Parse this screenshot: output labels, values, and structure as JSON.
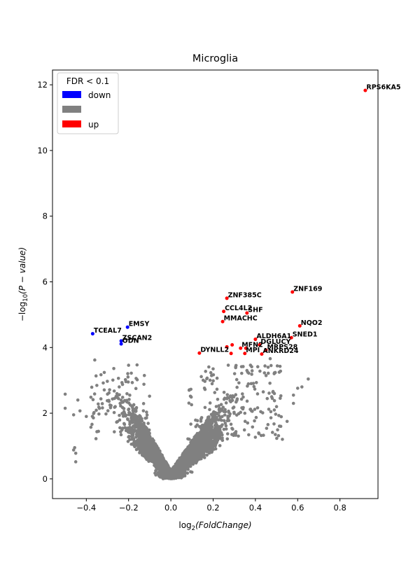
{
  "chart_data": {
    "type": "scatter",
    "title": "Microglia",
    "xlabel_main": "log",
    "xlabel_sub": "2",
    "xlabel_paren": "(FoldChange)",
    "ylabel_main": "−log",
    "ylabel_sub": "10",
    "ylabel_paren": "(P − value)",
    "xlim": [
      -0.56,
      0.98
    ],
    "ylim": [
      -0.6,
      12.45
    ],
    "xticks": [
      -0.4,
      -0.2,
      0.0,
      0.2,
      0.4,
      0.6,
      0.8
    ],
    "xtick_labels": [
      "−0.4",
      "−0.2",
      "0.0",
      "0.2",
      "0.4",
      "0.6",
      "0.8"
    ],
    "yticks": [
      0,
      2,
      4,
      6,
      8,
      10,
      12
    ],
    "ytick_labels": [
      "0",
      "2",
      "4",
      "6",
      "8",
      "10",
      "12"
    ],
    "grid": false,
    "legend": {
      "title": "FDR < 0.1",
      "position": "top-left",
      "entries": [
        {
          "label": "down",
          "color": "#0000ff"
        },
        {
          "label": "",
          "color": "#808080"
        },
        {
          "label": "up",
          "color": "#ff0000"
        }
      ]
    },
    "colors": {
      "down": "#0000ff",
      "ns": "#808080",
      "up": "#ff0000"
    },
    "significant_points": [
      {
        "gene": "RPS6KA5",
        "x": 0.92,
        "y": 11.83,
        "status": "up"
      },
      {
        "gene": "ZNF169",
        "x": 0.575,
        "y": 5.69,
        "status": "up"
      },
      {
        "gene": "ZNF385C",
        "x": 0.265,
        "y": 5.5,
        "status": "up"
      },
      {
        "gene": "CCL4L2",
        "x": 0.25,
        "y": 5.1,
        "status": "up"
      },
      {
        "gene": "SHF",
        "x": 0.36,
        "y": 5.05,
        "status": "up"
      },
      {
        "gene": "MMACHC",
        "x": 0.245,
        "y": 4.79,
        "status": "up"
      },
      {
        "gene": "NQO2",
        "x": 0.61,
        "y": 4.66,
        "status": "up"
      },
      {
        "gene": "SNED1",
        "x": 0.57,
        "y": 4.3,
        "status": "up"
      },
      {
        "gene": "ALDH6A1",
        "x": 0.4,
        "y": 4.25,
        "status": "up"
      },
      {
        "gene": "DGLUCY",
        "x": 0.42,
        "y": 4.08,
        "status": "up"
      },
      {
        "gene": "MFN2",
        "x": 0.33,
        "y": 3.98,
        "status": "up"
      },
      {
        "gene": "MRPS28",
        "x": 0.45,
        "y": 3.92,
        "status": "up"
      },
      {
        "gene": "ANKRD24",
        "x": 0.43,
        "y": 3.8,
        "status": "up"
      },
      {
        "gene": "DYNLL2",
        "x": 0.135,
        "y": 3.83,
        "status": "up"
      },
      {
        "gene": "MPI",
        "x": 0.35,
        "y": 3.82,
        "status": "up"
      },
      {
        "gene": "EMSY",
        "x": -0.205,
        "y": 4.62,
        "status": "down"
      },
      {
        "gene": "TCEAL7",
        "x": -0.37,
        "y": 4.42,
        "status": "down"
      },
      {
        "gene": "ZSCAN2",
        "x": -0.235,
        "y": 4.2,
        "status": "down"
      },
      {
        "gene": "ODN",
        "x": -0.235,
        "y": 4.11,
        "status": "down"
      }
    ],
    "unlabeled_up_points": [
      {
        "x": 0.265,
        "y": 4.02
      },
      {
        "x": 0.29,
        "y": 4.08
      },
      {
        "x": 0.355,
        "y": 3.98
      },
      {
        "x": 0.285,
        "y": 3.82
      }
    ],
    "ns_points": [
      {
        "x": -0.5,
        "y": 2.58
      },
      {
        "x": -0.5,
        "y": 2.15
      },
      {
        "x": -0.44,
        "y": 2.4
      },
      {
        "x": -0.43,
        "y": 2.07
      },
      {
        "x": -0.4,
        "y": 1.9
      },
      {
        "x": -0.46,
        "y": 1.95
      },
      {
        "x": -0.455,
        "y": 0.95
      },
      {
        "x": -0.46,
        "y": 0.88
      },
      {
        "x": -0.45,
        "y": 0.78
      },
      {
        "x": -0.45,
        "y": 0.52
      },
      {
        "x": -0.36,
        "y": 3.62
      },
      {
        "x": -0.32,
        "y": 2.92
      },
      {
        "x": -0.27,
        "y": 3.36
      },
      {
        "x": -0.2,
        "y": 3.46
      },
      {
        "x": -0.16,
        "y": 3.47
      },
      {
        "x": 0.65,
        "y": 3.04
      },
      {
        "x": 0.62,
        "y": 2.8
      },
      {
        "x": 0.6,
        "y": 2.76
      },
      {
        "x": 0.58,
        "y": 2.55
      },
      {
        "x": 0.58,
        "y": 2.3
      },
      {
        "x": 0.55,
        "y": 1.75
      },
      {
        "x": 0.52,
        "y": 1.6
      },
      {
        "x": 0.48,
        "y": 2.45
      },
      {
        "x": 0.5,
        "y": 2.2
      },
      {
        "x": 0.47,
        "y": 3.66
      },
      {
        "x": 0.46,
        "y": 3.4
      },
      {
        "x": 0.36,
        "y": 3.3
      },
      {
        "x": 0.38,
        "y": 2.9
      },
      {
        "x": 0.2,
        "y": 3.35
      },
      {
        "x": 0.17,
        "y": 3.05
      }
    ]
  }
}
